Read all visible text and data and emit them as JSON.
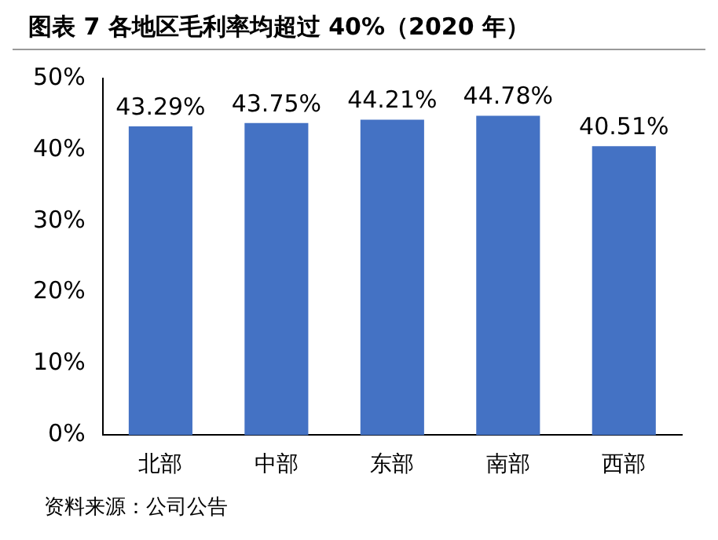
{
  "chart_data": {
    "type": "bar",
    "title": "图表 7 各地区毛利率均超过 40%（2020 年）",
    "categories": [
      "北部",
      "中部",
      "东部",
      "南部",
      "西部"
    ],
    "values": [
      43.29,
      43.75,
      44.21,
      44.78,
      40.51
    ],
    "value_labels": [
      "43.29%",
      "43.75%",
      "44.21%",
      "44.78%",
      "40.51%"
    ],
    "color": "#4472c4",
    "ylim": [
      0,
      50
    ],
    "yticks": [
      {
        "value": 0,
        "label": "0%"
      },
      {
        "value": 10,
        "label": "10%"
      },
      {
        "value": 20,
        "label": "20%"
      },
      {
        "value": 30,
        "label": "30%"
      },
      {
        "value": 40,
        "label": "40%"
      },
      {
        "value": 50,
        "label": "50%"
      }
    ],
    "grid": false,
    "annotations": [
      "资料来源：公司公告"
    ]
  }
}
